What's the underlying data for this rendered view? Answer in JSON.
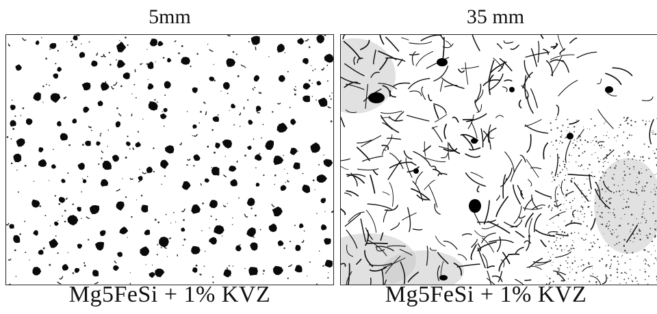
{
  "panels": [
    {
      "id": "left",
      "top_label": "5mm",
      "bottom_label": "Mg5FeSi + 1% KVZ",
      "structure": "nodular"
    },
    {
      "id": "right",
      "top_label": "35 mm",
      "bottom_label": "Mg5FeSi + 1% KVZ",
      "structure": "flake"
    }
  ]
}
